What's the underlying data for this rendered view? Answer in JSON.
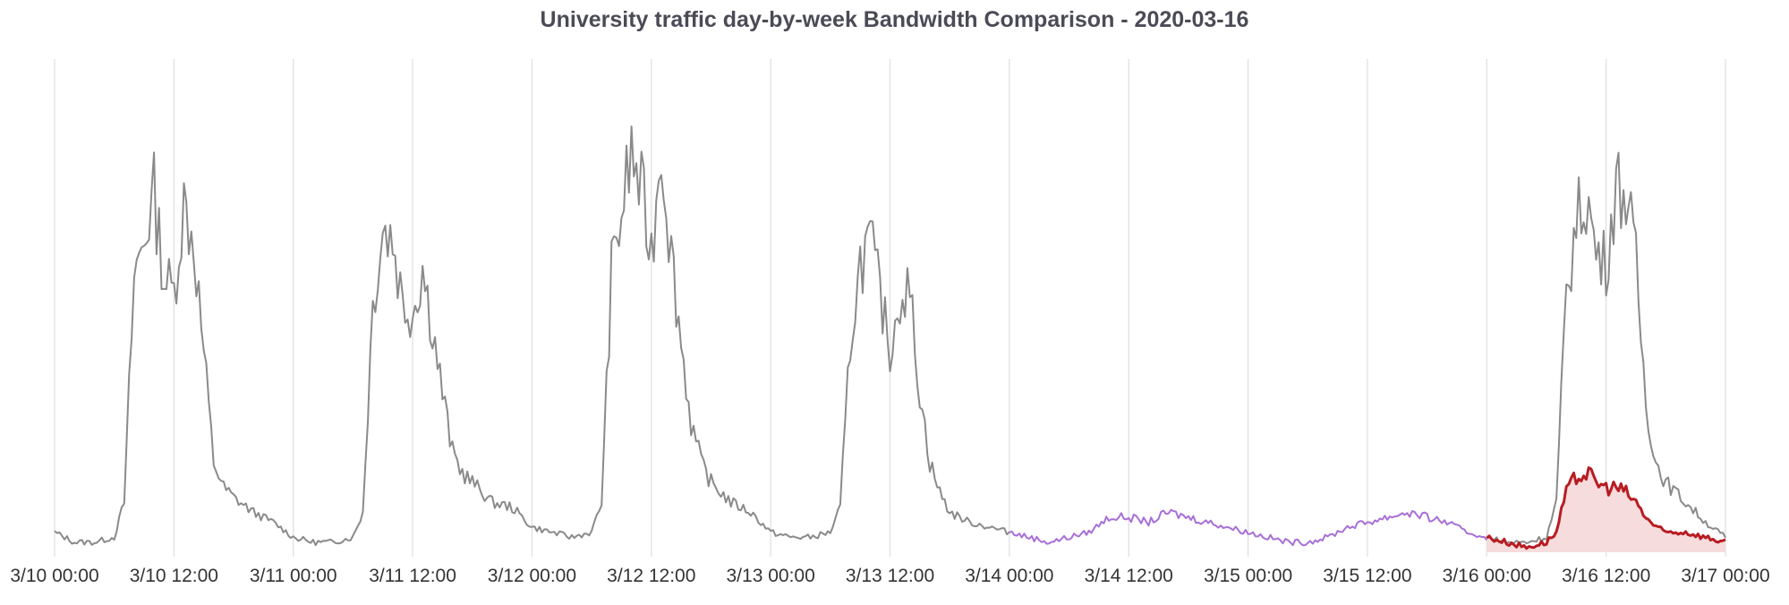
{
  "chart_data": {
    "type": "line",
    "title": "University traffic day-by-week Bandwidth Comparison - 2020-03-16",
    "xlabel": "",
    "ylabel": "",
    "x_range": [
      "3/10 00:00",
      "3/17 00:00"
    ],
    "y_range": [
      0,
      100
    ],
    "grid": "vertical",
    "legend": "none",
    "x_tick_labels": [
      "3/10 00:00",
      "3/10 12:00",
      "3/11 00:00",
      "3/11 12:00",
      "3/12 00:00",
      "3/12 12:00",
      "3/13 00:00",
      "3/13 12:00",
      "3/14 00:00",
      "3/14 12:00",
      "3/15 00:00",
      "3/15 12:00",
      "3/16 00:00",
      "3/16 12:00",
      "3/17 00:00"
    ],
    "colors": {
      "weekday": "#8a8a8a",
      "weekend": "#a86fd6",
      "current": "#b81c22",
      "current_fill": "#f6dcdc",
      "grid": "#dedede"
    },
    "series": [
      {
        "color": "#8a8a8a",
        "x": [
          "3/10 00:00",
          "3/10 02:00",
          "3/10 04:00",
          "3/10 06:00",
          "3/10 07:00",
          "3/10 08:00",
          "3/10 09:00",
          "3/10 10:00",
          "3/10 11:00",
          "3/10 12:00",
          "3/10 13:00",
          "3/10 14:00",
          "3/10 15:00",
          "3/10 16:00",
          "3/10 17:00",
          "3/10 18:00",
          "3/10 20:00",
          "3/10 22:00",
          "3/11 00:00",
          "3/11 02:00",
          "3/11 04:00",
          "3/11 06:00",
          "3/11 07:00",
          "3/11 08:00",
          "3/11 09:00",
          "3/11 10:00",
          "3/11 11:00",
          "3/11 12:00",
          "3/11 13:00",
          "3/11 14:00",
          "3/11 15:00",
          "3/11 16:00",
          "3/11 17:00",
          "3/11 18:00",
          "3/11 20:00",
          "3/11 22:00",
          "3/12 00:00",
          "3/12 02:00",
          "3/12 04:00",
          "3/12 06:00",
          "3/12 07:00",
          "3/12 08:00",
          "3/12 09:00",
          "3/12 10:00",
          "3/12 11:00",
          "3/12 12:00",
          "3/12 13:00",
          "3/12 14:00",
          "3/12 15:00",
          "3/12 16:00",
          "3/12 17:00",
          "3/12 18:00",
          "3/12 20:00",
          "3/12 22:00",
          "3/13 00:00",
          "3/13 02:00",
          "3/13 04:00",
          "3/13 06:00",
          "3/13 07:00",
          "3/13 08:00",
          "3/13 09:00",
          "3/13 10:00",
          "3/13 11:00",
          "3/13 12:00",
          "3/13 13:00",
          "3/13 14:00",
          "3/13 15:00",
          "3/13 16:00",
          "3/13 17:00",
          "3/13 18:00",
          "3/13 20:00",
          "3/13 22:00",
          "3/14 00:00"
        ],
        "values": [
          4,
          2,
          2,
          3,
          10,
          55,
          63,
          72,
          55,
          52,
          70,
          62,
          40,
          18,
          13,
          11,
          8,
          6,
          3,
          2,
          2,
          3,
          8,
          50,
          65,
          63,
          50,
          48,
          57,
          45,
          32,
          20,
          16,
          14,
          10,
          9,
          5,
          4,
          3,
          4,
          10,
          56,
          68,
          80,
          72,
          60,
          82,
          60,
          42,
          26,
          18,
          14,
          10,
          8,
          4,
          3,
          3,
          4,
          9,
          42,
          58,
          62,
          52,
          40,
          52,
          52,
          32,
          18,
          12,
          8,
          6,
          5,
          4
        ]
      },
      {
        "color": "#8a8a8a",
        "x": [
          "3/16 00:00",
          "3/16 02:00",
          "3/16 04:00",
          "3/16 06:00",
          "3/16 07:00",
          "3/16 08:00",
          "3/16 09:00",
          "3/16 10:00",
          "3/16 11:00",
          "3/16 12:00",
          "3/16 13:00",
          "3/16 14:00",
          "3/16 15:00",
          "3/16 16:00",
          "3/16 17:00",
          "3/16 18:00",
          "3/16 20:00",
          "3/16 22:00",
          "3/17 00:00"
        ],
        "values": [
          3,
          2,
          2,
          3,
          10,
          52,
          66,
          72,
          60,
          58,
          74,
          72,
          58,
          30,
          18,
          14,
          10,
          6,
          3
        ]
      },
      {
        "color": "#a86fd6",
        "x": [
          "3/14 00:00",
          "3/14 02:00",
          "3/14 04:00",
          "3/14 06:00",
          "3/14 08:00",
          "3/14 10:00",
          "3/14 12:00",
          "3/14 14:00",
          "3/14 16:00",
          "3/14 18:00",
          "3/14 20:00",
          "3/14 22:00",
          "3/15 00:00",
          "3/15 02:00",
          "3/15 04:00",
          "3/15 06:00",
          "3/15 08:00",
          "3/15 10:00",
          "3/15 12:00",
          "3/15 14:00",
          "3/15 16:00",
          "3/15 18:00",
          "3/15 20:00",
          "3/15 22:00",
          "3/16 00:00"
        ],
        "values": [
          4,
          3,
          2,
          3,
          4,
          7,
          7,
          6,
          8,
          7,
          6,
          5,
          4,
          3,
          2,
          2,
          3,
          5,
          6,
          7,
          8,
          7,
          6,
          4,
          3
        ]
      },
      {
        "color": "#b81c22",
        "x": [
          "3/16 00:00",
          "3/16 02:00",
          "3/16 04:00",
          "3/16 06:00",
          "3/16 07:00",
          "3/16 08:00",
          "3/16 09:00",
          "3/16 10:00",
          "3/16 11:00",
          "3/16 12:00",
          "3/16 13:00",
          "3/16 14:00",
          "3/16 15:00",
          "3/16 16:00",
          "3/16 17:00",
          "3/16 18:00",
          "3/16 20:00",
          "3/16 22:00",
          "3/17 00:00"
        ],
        "values": [
          3,
          2,
          1,
          2,
          4,
          12,
          15,
          16,
          14,
          13,
          13,
          12,
          10,
          7,
          5,
          4,
          4,
          3,
          2
        ]
      }
    ]
  }
}
